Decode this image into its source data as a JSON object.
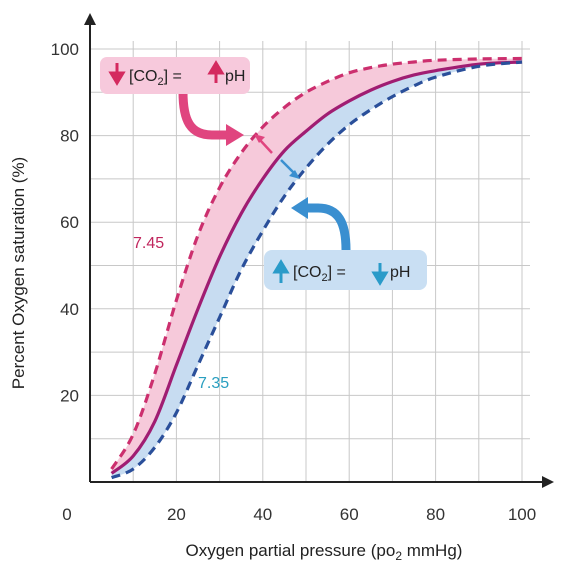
{
  "chart_data": {
    "type": "line",
    "xlabel": "Oxygen partial pressure (po",
    "xlabel_sub": "2",
    "xlabel_tail": " mmHg)",
    "ylabel": "Percent Oxygen saturation (%)",
    "xlim": [
      0,
      100
    ],
    "ylim": [
      0,
      100
    ],
    "x_origin_label": "0",
    "x_ticks": [
      20,
      40,
      60,
      80,
      100
    ],
    "y_ticks": [
      20,
      40,
      60,
      80,
      100
    ],
    "grid": true,
    "series": [
      {
        "name": "7.45",
        "style": "dashed",
        "color": "#cc2f6e",
        "x": [
          5,
          10,
          15,
          20,
          25,
          30,
          35,
          40,
          45,
          50,
          55,
          60,
          65,
          70,
          75,
          80,
          90,
          100
        ],
        "y": [
          3,
          11,
          25,
          42,
          57,
          68,
          76,
          82,
          86.5,
          90,
          92.5,
          94.5,
          95.7,
          96.5,
          97,
          97.4,
          97.7,
          97.8
        ]
      },
      {
        "name": "",
        "style": "solid",
        "color": "#a01d72",
        "x": [
          5,
          10,
          15,
          20,
          25,
          30,
          35,
          40,
          45,
          50,
          55,
          60,
          65,
          70,
          75,
          80,
          90,
          100
        ],
        "y": [
          2,
          6,
          14,
          27,
          40,
          52,
          62,
          70,
          76.5,
          81,
          85,
          88,
          90.5,
          92.5,
          94,
          95,
          96.5,
          97
        ]
      },
      {
        "name": "7.35",
        "style": "dashed",
        "color": "#2a4f9a",
        "x": [
          5,
          10,
          15,
          20,
          25,
          30,
          35,
          40,
          45,
          50,
          55,
          60,
          65,
          70,
          75,
          80,
          90,
          100
        ],
        "y": [
          1,
          3,
          8,
          16,
          27,
          38,
          49,
          58,
          66,
          72.5,
          78,
          82.5,
          86,
          89,
          91.5,
          93.5,
          96,
          97
        ]
      }
    ],
    "annotations": {
      "left_shift": {
        "co2": "[CO",
        "sub": "2",
        "mid": "] = ",
        "ph": "pH",
        "fill": "#f7c9dc",
        "arrow_color": "#e0457f"
      },
      "right_shift": {
        "co2": "[CO",
        "sub": "2",
        "mid": "] = ",
        "ph": "pH",
        "fill": "#c9dff3",
        "arrow_color": "#3a8fd0"
      }
    },
    "colors": {
      "pink_band": "#f6c9da",
      "blue_band": "#c7dcf1",
      "grid": "#c8c8c8",
      "axis": "#222222",
      "label_745": "#c0265d",
      "label_735": "#2a9fc0"
    }
  }
}
